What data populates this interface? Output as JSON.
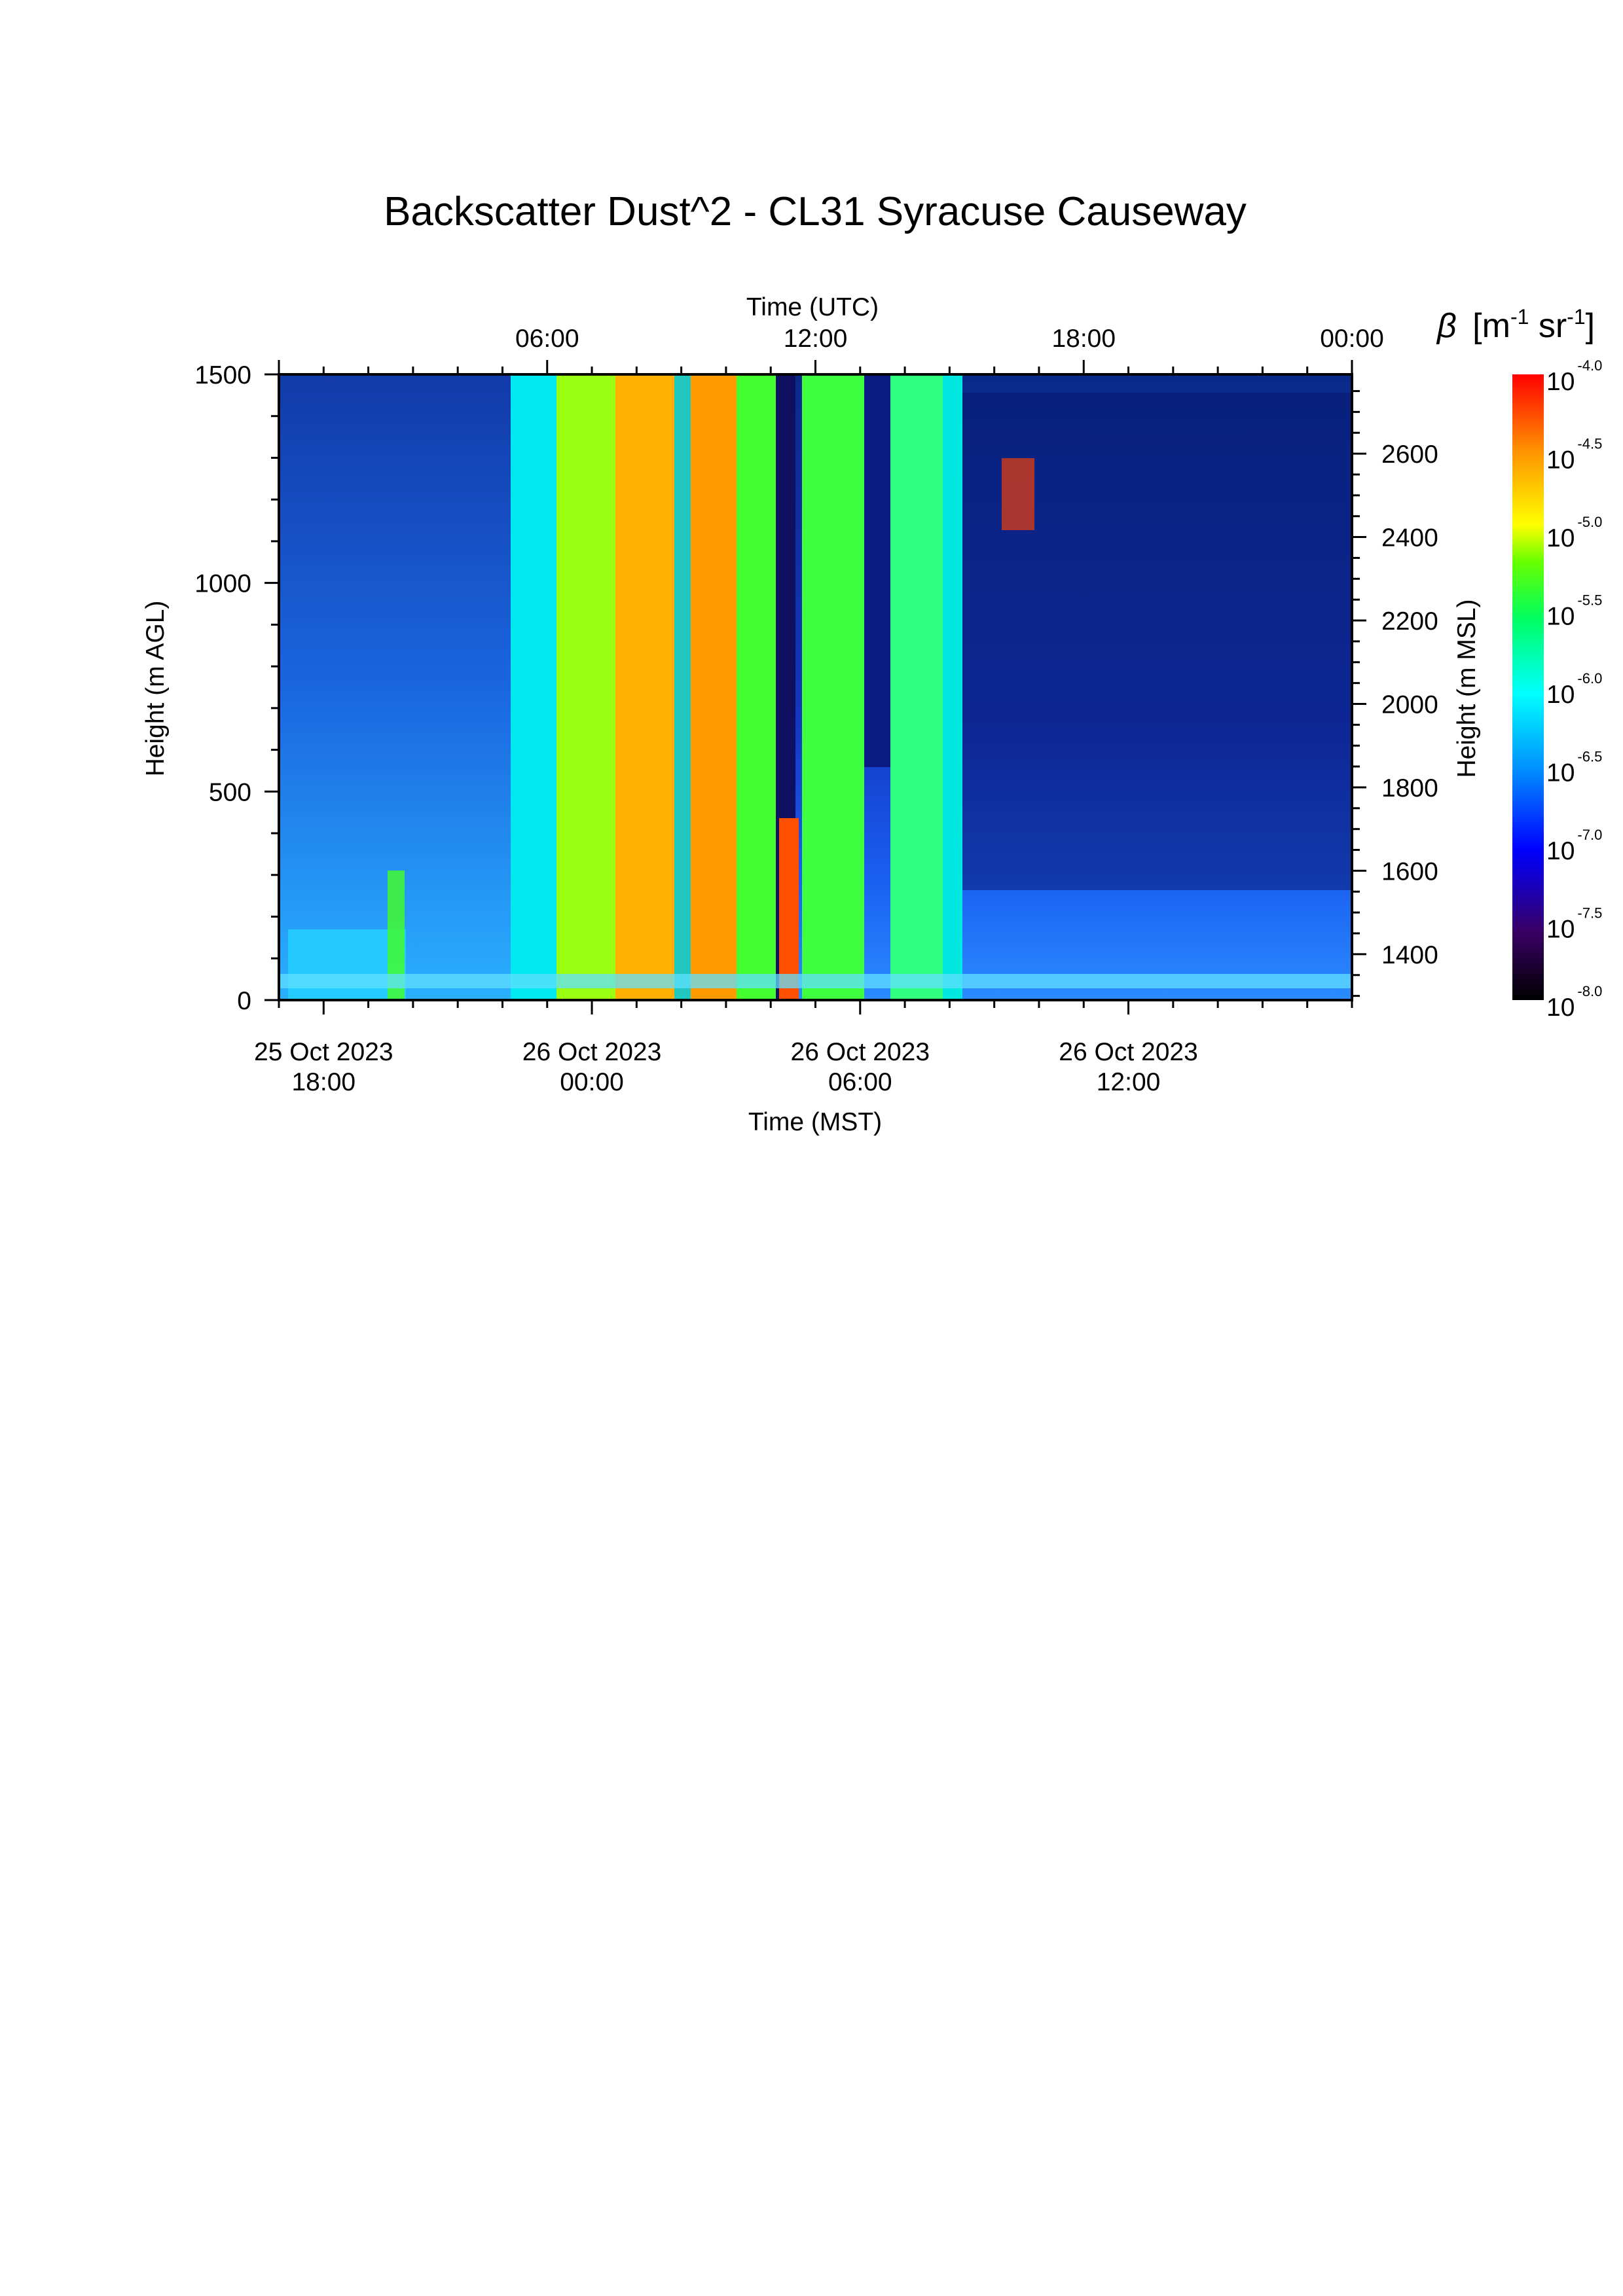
{
  "chart_data": {
    "type": "heatmap",
    "title": "Backscatter Dust^2 - CL31 Syracuse Causeway",
    "x_top_label": "Time (UTC)",
    "x_top_ticks": [
      "06:00",
      "12:00",
      "18:00",
      "00:00"
    ],
    "x_bottom_label": "Time (MST)",
    "x_bottom_ticks": [
      {
        "date": "25 Oct 2023",
        "time": "18:00"
      },
      {
        "date": "26 Oct 2023",
        "time": "00:00"
      },
      {
        "date": "26 Oct 2023",
        "time": "06:00"
      },
      {
        "date": "26 Oct 2023",
        "time": "12:00"
      }
    ],
    "x_range_mst": [
      "25 Oct 2023 17:00",
      "26 Oct 2023 17:00"
    ],
    "y_left_label": "Height (m AGL)",
    "y_left_ticks": [
      0,
      500,
      1000,
      1500
    ],
    "y_left_range": [
      0,
      1500
    ],
    "y_right_label": "Height (m MSL)",
    "y_right_ticks": [
      1400,
      1600,
      1800,
      2000,
      2200,
      2400,
      2600
    ],
    "y_right_range": [
      1290,
      2790
    ],
    "colorbar": {
      "label_symbol": "β",
      "label_units": "[m-1 sr-1]",
      "scale": "log",
      "range_exponent": [
        -8.0,
        -4.0
      ],
      "tick_base": "10",
      "tick_exponents": [
        "-4.0",
        "-4.5",
        "-5.0",
        "-5.5",
        "-6.0",
        "-6.5",
        "-7.0",
        "-7.5",
        "-8.0"
      ],
      "colormap": [
        "#000000",
        "#3a0066",
        "#0000ff",
        "#0090ff",
        "#00ffff",
        "#00ff60",
        "#66ff00",
        "#ffff00",
        "#ff9000",
        "#ff0000"
      ]
    }
  }
}
